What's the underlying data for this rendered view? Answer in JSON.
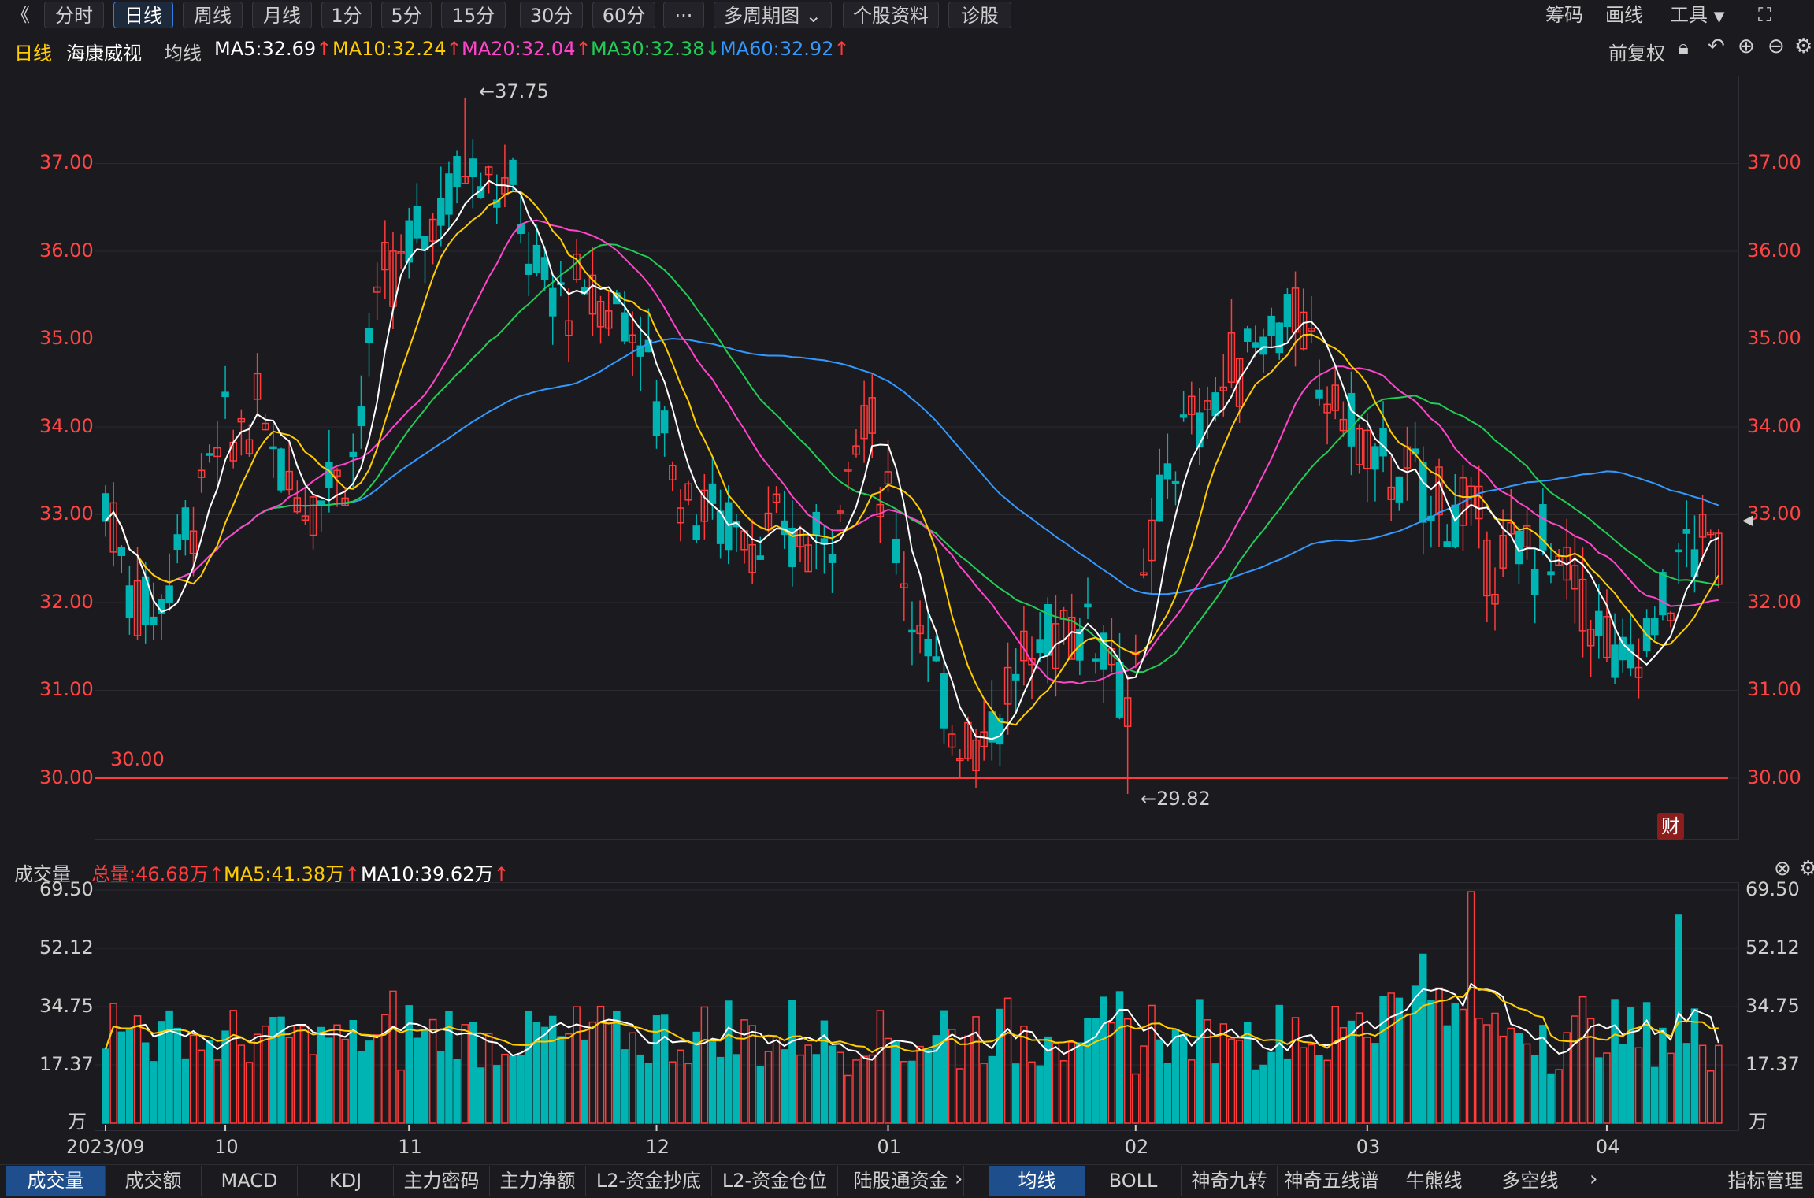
{
  "toolbar": {
    "back_icon": "double-chevron-left-icon",
    "tabs": [
      "分时",
      "日线",
      "周线",
      "月线",
      "1分",
      "5分",
      "15分",
      "30分",
      "60分"
    ],
    "active_tab": "日线",
    "more_label": "···",
    "multi_period": "多周期图",
    "profile": "个股资料",
    "diagnose": "诊股",
    "right": [
      "筹码",
      "画线",
      "工具"
    ]
  },
  "legend": {
    "period": "日线",
    "stock": "海康威视",
    "avg_label": "均线",
    "ma5": "MA5:32.69",
    "ma10": "MA10:32.24",
    "ma20": "MA20:32.04",
    "ma30": "MA30:32.38",
    "ma60": "MA60:32.92",
    "adjust": "前复权",
    "colors": {
      "ma5": "#ffffff",
      "ma10": "#ffcc00",
      "ma20": "#ff44cc",
      "ma30": "#22cc55",
      "ma60": "#3399ff",
      "up": "#ff3b3b",
      "down": "#00b4b4"
    }
  },
  "vol_legend": {
    "title": "成交量",
    "total": "总量:46.68万",
    "ma5": "MA5:41.38万",
    "ma10": "MA10:39.62万"
  },
  "annotations": {
    "high": "←37.75",
    "low": "←29.82",
    "line_label": "30.00",
    "badge": "财"
  },
  "bottom_tabs_left": [
    "成交量",
    "成交额",
    "MACD",
    "KDJ",
    "主力密码",
    "主力净额",
    "L2-资金抄底",
    "L2-资金仓位",
    "陆股通资金"
  ],
  "bottom_tabs_right": [
    "均线",
    "BOLL",
    "神奇九转",
    "神奇五线谱",
    "牛熊线",
    "多空线"
  ],
  "indicator_manage": "指标管理",
  "chart_data": [
    {
      "type": "candlestick",
      "title": "海康威视 日线",
      "ylim": [
        29.3,
        38.0
      ],
      "y_ticks": [
        "37.00",
        "36.00",
        "35.00",
        "34.00",
        "33.00",
        "32.00",
        "31.00",
        "30.00"
      ],
      "x_ticks": [
        "2023/09",
        "10",
        "11",
        "12",
        "01",
        "02",
        "03",
        "04"
      ],
      "horizontal_line": 30.0,
      "max_price": 37.75,
      "min_price": 29.82,
      "series": [
        "MA5",
        "MA10",
        "MA20",
        "MA30",
        "MA60"
      ]
    },
    {
      "type": "bar",
      "title": "成交量",
      "unit": "万",
      "ylim": [
        0,
        69.5
      ],
      "y_ticks": [
        "69.50",
        "52.12",
        "34.75",
        "17.37"
      ],
      "series": [
        "volume",
        "MA5",
        "MA10"
      ]
    }
  ]
}
